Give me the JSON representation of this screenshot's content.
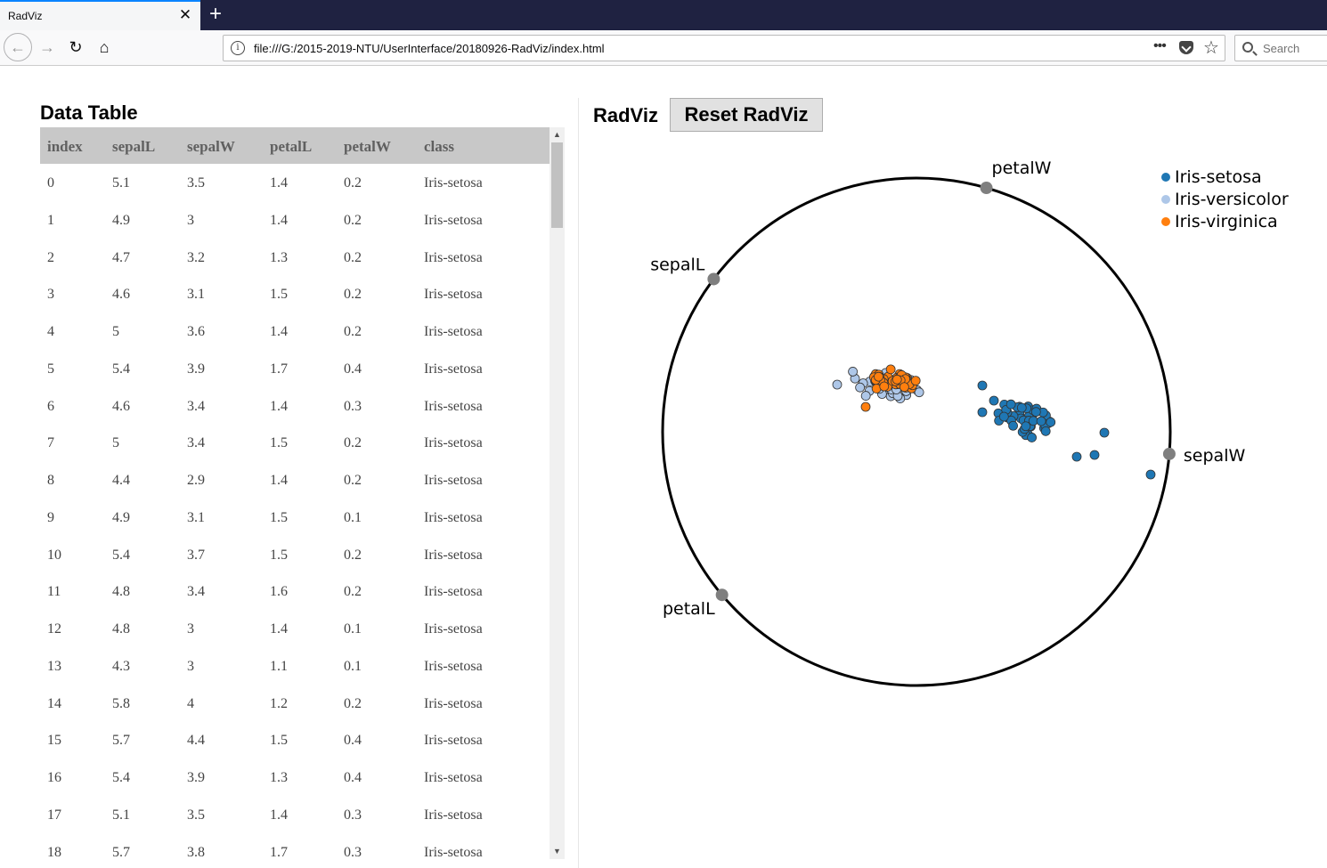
{
  "browser": {
    "tab_title": "RadViz",
    "tab_close": "✕",
    "new_tab": "+",
    "url": "file:///G:/2015-2019-NTU/UserInterface/20180926-RadViz/index.html",
    "more_actions": "•••",
    "search_placeholder": "Search",
    "icons": [
      "back-icon",
      "forward-icon",
      "reload-icon",
      "home-icon",
      "info-icon",
      "page-actions-icon",
      "pocket-icon",
      "bookmark-star-icon",
      "search-icon",
      "tab-close-icon",
      "new-tab-icon"
    ]
  },
  "table": {
    "title": "Data Table",
    "columns": [
      "index",
      "sepalL",
      "sepalW",
      "petalL",
      "petalW",
      "class"
    ],
    "rows": [
      [
        "0",
        "5.1",
        "3.5",
        "1.4",
        "0.2",
        "Iris-setosa"
      ],
      [
        "1",
        "4.9",
        "3",
        "1.4",
        "0.2",
        "Iris-setosa"
      ],
      [
        "2",
        "4.7",
        "3.2",
        "1.3",
        "0.2",
        "Iris-setosa"
      ],
      [
        "3",
        "4.6",
        "3.1",
        "1.5",
        "0.2",
        "Iris-setosa"
      ],
      [
        "4",
        "5",
        "3.6",
        "1.4",
        "0.2",
        "Iris-setosa"
      ],
      [
        "5",
        "5.4",
        "3.9",
        "1.7",
        "0.4",
        "Iris-setosa"
      ],
      [
        "6",
        "4.6",
        "3.4",
        "1.4",
        "0.3",
        "Iris-setosa"
      ],
      [
        "7",
        "5",
        "3.4",
        "1.5",
        "0.2",
        "Iris-setosa"
      ],
      [
        "8",
        "4.4",
        "2.9",
        "1.4",
        "0.2",
        "Iris-setosa"
      ],
      [
        "9",
        "4.9",
        "3.1",
        "1.5",
        "0.1",
        "Iris-setosa"
      ],
      [
        "10",
        "5.4",
        "3.7",
        "1.5",
        "0.2",
        "Iris-setosa"
      ],
      [
        "11",
        "4.8",
        "3.4",
        "1.6",
        "0.2",
        "Iris-setosa"
      ],
      [
        "12",
        "4.8",
        "3",
        "1.4",
        "0.1",
        "Iris-setosa"
      ],
      [
        "13",
        "4.3",
        "3",
        "1.1",
        "0.1",
        "Iris-setosa"
      ],
      [
        "14",
        "5.8",
        "4",
        "1.2",
        "0.2",
        "Iris-setosa"
      ],
      [
        "15",
        "5.7",
        "4.4",
        "1.5",
        "0.4",
        "Iris-setosa"
      ],
      [
        "16",
        "5.4",
        "3.9",
        "1.3",
        "0.4",
        "Iris-setosa"
      ],
      [
        "17",
        "5.1",
        "3.5",
        "1.4",
        "0.3",
        "Iris-setosa"
      ],
      [
        "18",
        "5.7",
        "3.8",
        "1.7",
        "0.3",
        "Iris-setosa"
      ]
    ]
  },
  "radviz": {
    "title": "RadViz",
    "reset_label": "Reset RadViz",
    "anchors": [
      {
        "name": "sepalW",
        "angle_deg": -5
      },
      {
        "name": "petalW",
        "angle_deg": 74
      },
      {
        "name": "sepalL",
        "angle_deg": 143
      },
      {
        "name": "petalL",
        "angle_deg": 220
      }
    ],
    "legend": [
      {
        "label": "Iris-setosa",
        "color": "#1f77b4"
      },
      {
        "label": "Iris-versicolor",
        "color": "#aec7e8"
      },
      {
        "label": "Iris-virginica",
        "color": "#ff7f0e"
      }
    ],
    "anchor_color": "#7f7f7f",
    "circle_color": "#000000"
  }
}
